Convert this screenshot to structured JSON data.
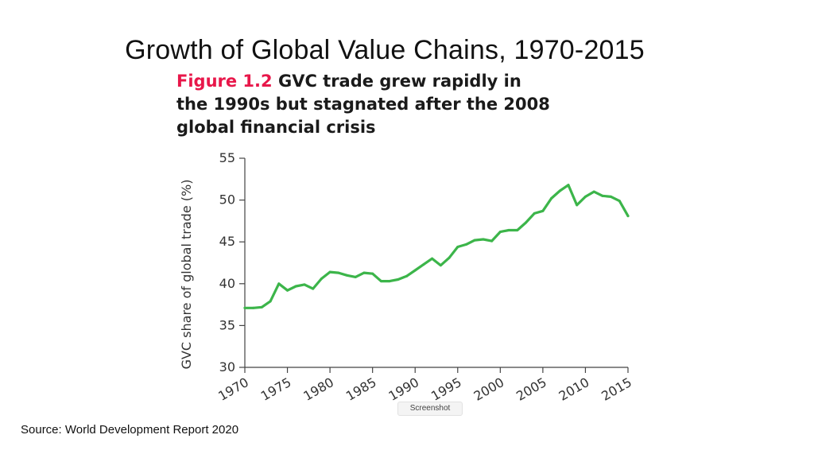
{
  "slide": {
    "title": "Growth of Global Value Chains, 1970-2015",
    "source": "Source:  World Development Report 2020",
    "badge": "Screenshot"
  },
  "figure": {
    "label": "Figure 1.2",
    "caption_line1": " GVC trade grew rapidly in",
    "caption_line2": "the 1990s but stagnated after the 2008",
    "caption_line3": "global financial crisis"
  },
  "colors": {
    "line": "#3cb54a",
    "label": "#e8174a",
    "axis": "#444444"
  },
  "chart_data": {
    "type": "line",
    "title": "GVC trade grew rapidly in the 1990s but stagnated after the 2008 global financial crisis",
    "xlabel": "",
    "ylabel": "GVC share of global trade (%)",
    "xlim": [
      1970,
      2015
    ],
    "ylim": [
      30,
      55
    ],
    "xticks": [
      1970,
      1975,
      1980,
      1985,
      1990,
      1995,
      2000,
      2005,
      2010,
      2015
    ],
    "yticks": [
      30,
      35,
      40,
      45,
      50,
      55
    ],
    "grid": false,
    "series": [
      {
        "name": "GVC share of global trade",
        "x": [
          1970,
          1971,
          1972,
          1973,
          1974,
          1975,
          1976,
          1977,
          1978,
          1979,
          1980,
          1981,
          1982,
          1983,
          1984,
          1985,
          1986,
          1987,
          1988,
          1989,
          1990,
          1991,
          1992,
          1993,
          1994,
          1995,
          1996,
          1997,
          1998,
          1999,
          2000,
          2001,
          2002,
          2003,
          2004,
          2005,
          2006,
          2007,
          2008,
          2009,
          2010,
          2011,
          2012,
          2013,
          2014,
          2015
        ],
        "values": [
          37.1,
          37.1,
          37.2,
          37.9,
          40.0,
          39.2,
          39.7,
          39.9,
          39.4,
          40.6,
          41.4,
          41.3,
          41.0,
          40.8,
          41.3,
          41.2,
          40.3,
          40.3,
          40.5,
          40.9,
          41.6,
          42.3,
          43.0,
          42.2,
          43.1,
          44.4,
          44.7,
          45.2,
          45.3,
          45.1,
          46.2,
          46.4,
          46.4,
          47.3,
          48.4,
          48.7,
          50.2,
          51.1,
          51.8,
          49.4,
          50.4,
          51.0,
          50.5,
          50.4,
          49.9,
          48.1
        ]
      }
    ]
  }
}
